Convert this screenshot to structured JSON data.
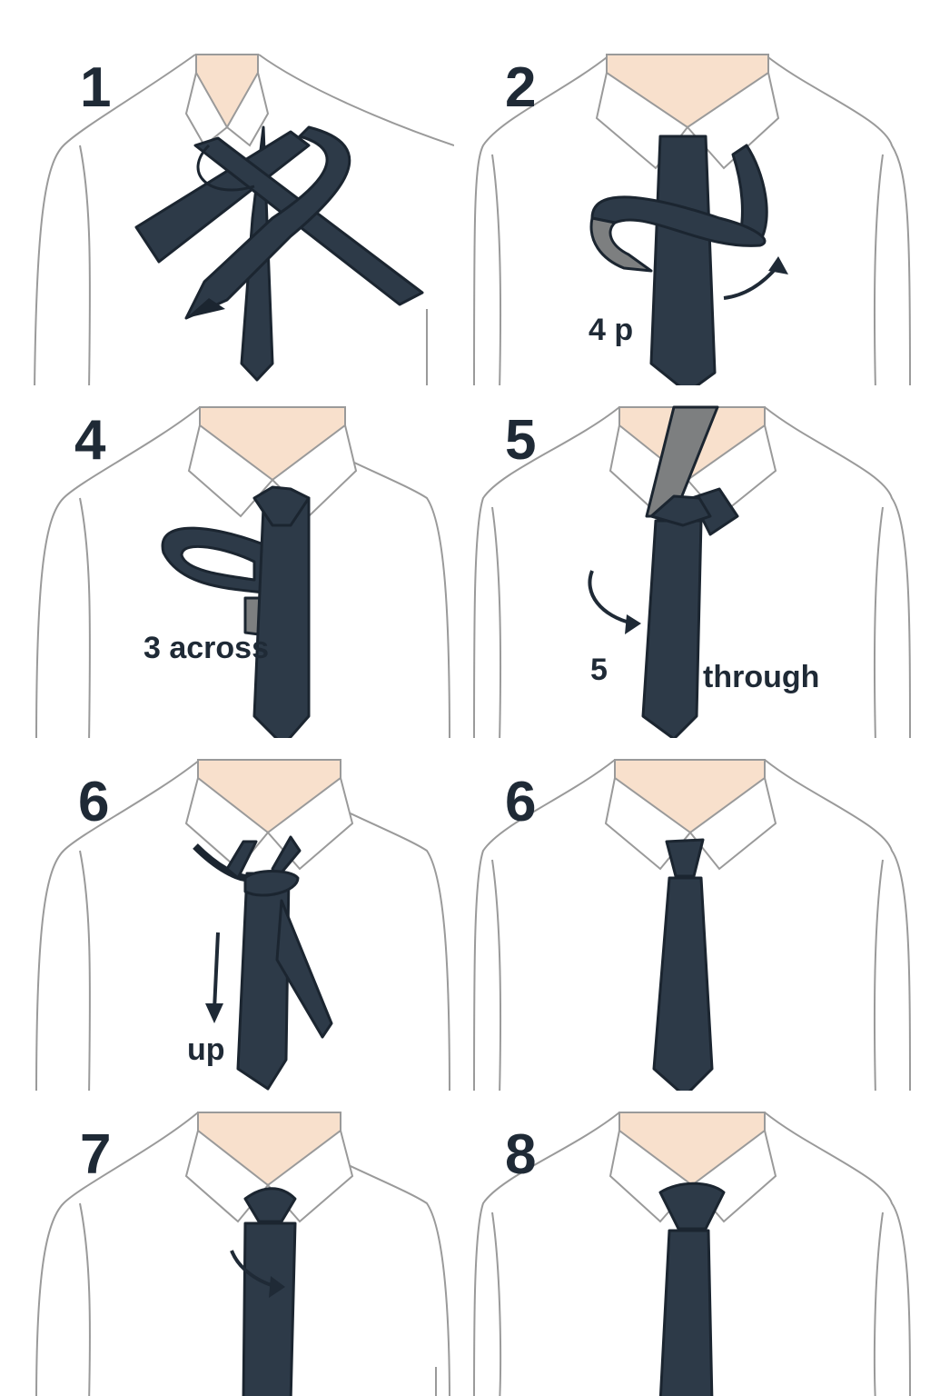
{
  "colors": {
    "tie": "#2d3a48",
    "tie_outline": "#1b2530",
    "tie_back": "#7d7f80",
    "skin": "#f8e0cc",
    "shirt_line": "#9a9a9a",
    "ink": "#1f2a36"
  },
  "panels": [
    {
      "number": "1",
      "annotation": "",
      "icon": "tie-crossing-icon"
    },
    {
      "number": "2",
      "annotation": "4 p",
      "icon": "tie-wrap-icon"
    },
    {
      "number": "4",
      "annotation": "3 across",
      "icon": "tie-loop-icon"
    },
    {
      "number": "5",
      "annotation": "5",
      "annotation2": "through",
      "icon": "tie-through-icon"
    },
    {
      "number": "6",
      "annotation": "up",
      "icon": "tie-knot-icon"
    },
    {
      "number": "6",
      "annotation": "",
      "icon": "tie-finished-icon"
    },
    {
      "number": "7",
      "annotation": "",
      "icon": "tie-tighten-icon"
    },
    {
      "number": "8",
      "annotation": "",
      "icon": "tie-final-icon"
    }
  ]
}
